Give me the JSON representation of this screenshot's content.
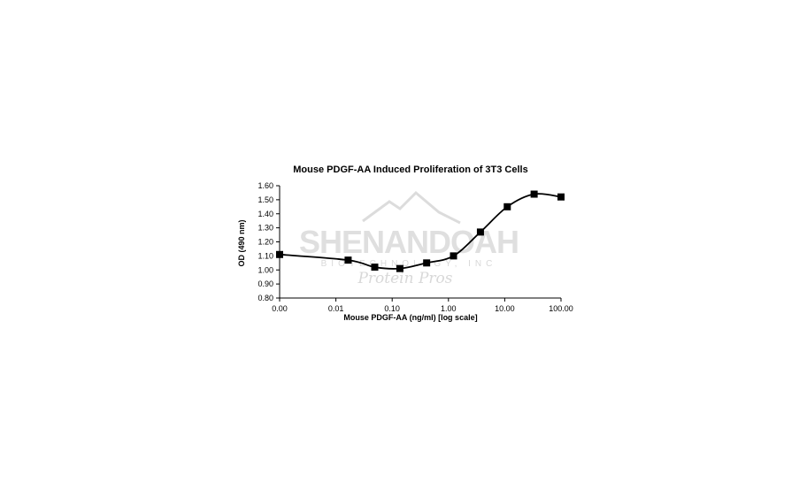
{
  "chart_data": {
    "type": "line",
    "title": "Mouse PDGF-AA Induced Proliferation of 3T3 Cells",
    "xlabel": "Mouse PDGF-AA (ng/ml) [log scale]",
    "ylabel": "OD (490 nm)",
    "xscale": "log",
    "x_tick_labels": [
      "0.00",
      "0.01",
      "0.10",
      "1.00",
      "10.00",
      "100.00"
    ],
    "x_ticks": [
      0.001,
      0.01,
      0.1,
      1,
      10,
      100
    ],
    "ylim": [
      0.8,
      1.6
    ],
    "y_ticks": [
      0.8,
      0.9,
      1.0,
      1.1,
      1.2,
      1.3,
      1.4,
      1.5,
      1.6
    ],
    "y_tick_labels": [
      "0.80",
      "0.90",
      "1.00",
      "1.10",
      "1.20",
      "1.30",
      "1.40",
      "1.50",
      "1.60"
    ],
    "grid": false,
    "legend": "none",
    "marker": "square",
    "line_style": "smooth",
    "series_color": "#000000",
    "series": [
      {
        "x": [
          0.001,
          0.0165,
          0.049,
          0.137,
          0.41,
          1.23,
          3.7,
          11.1,
          33.3,
          100
        ],
        "y": [
          1.11,
          1.07,
          1.02,
          1.01,
          1.05,
          1.1,
          1.27,
          1.45,
          1.54,
          1.52
        ]
      }
    ]
  },
  "watermark": {
    "name": "SHENANDOAH",
    "subtitle": "BIOTECHNOLOGY, INC",
    "tagline": "Protein Pros",
    "color": "#d9d9d9"
  }
}
